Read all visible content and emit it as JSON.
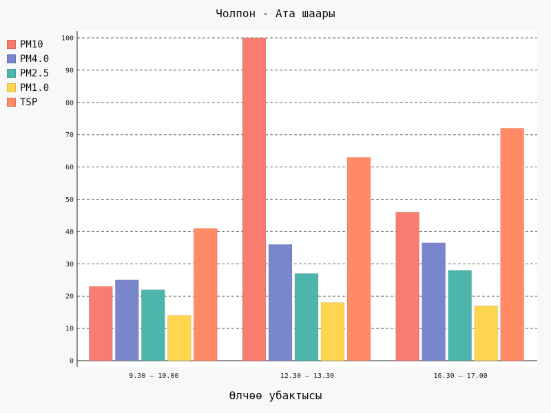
{
  "chart_data": {
    "type": "bar",
    "title": "Чолпон - Ата шаары",
    "xlabel": "Өлчөө убактысы",
    "ylabel": "",
    "categories": [
      "9.30 – 10.00",
      "12.30 – 13.30",
      "16.30 – 17.00"
    ],
    "series": [
      {
        "name": "PM10",
        "color": "#f87c70",
        "values": [
          23,
          100,
          46
        ]
      },
      {
        "name": "PM4.0",
        "color": "#7986cb",
        "values": [
          25,
          36,
          36.5
        ]
      },
      {
        "name": "PM2.5",
        "color": "#4db6ac",
        "values": [
          22,
          27,
          28
        ]
      },
      {
        "name": "PM1.0",
        "color": "#ffd54f",
        "values": [
          14,
          18,
          17
        ]
      },
      {
        "name": "TSP",
        "color": "#ff8a65",
        "values": [
          41,
          63,
          72
        ]
      }
    ],
    "ylim": [
      0,
      100
    ],
    "yticks": [
      0,
      10,
      20,
      30,
      40,
      50,
      60,
      70,
      80,
      90,
      100
    ],
    "grid": true,
    "legend_position": "top-left"
  }
}
